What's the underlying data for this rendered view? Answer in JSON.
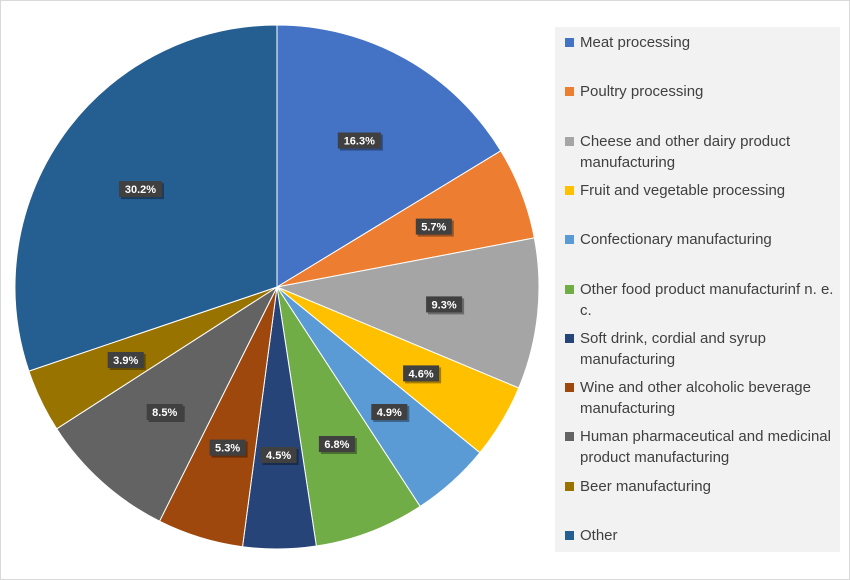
{
  "chart_data": {
    "type": "pie",
    "categories": [
      "Meat processing",
      "Poultry processing",
      "Cheese and other dairy product manufacturing",
      "Fruit and vegetable processing",
      "Confectionary manufacturing",
      "Other food product manufacturinf n. e. c.",
      "Soft drink, cordial and syrup manufacturing",
      "Wine and other alcoholic beverage manufacturing",
      "Human pharmaceutical and medicinal product manufacturing",
      "Beer manufacturing",
      "Other"
    ],
    "values": [
      16.3,
      5.7,
      9.3,
      4.6,
      4.9,
      6.8,
      4.5,
      5.3,
      8.5,
      3.9,
      30.2
    ],
    "data_labels": [
      "16.3%",
      "5.7%",
      "9.3%",
      "4.6%",
      "4.9%",
      "6.8%",
      "4.5%",
      "5.3%",
      "8.5%",
      "3.9%",
      "30.2%"
    ],
    "colors": [
      "#4472c4",
      "#ed7d31",
      "#a5a5a5",
      "#ffc000",
      "#5b9bd5",
      "#70ad47",
      "#264478",
      "#9e480e",
      "#636363",
      "#997300",
      "#255e91"
    ],
    "start_angle_deg": 0,
    "direction": "clockwise",
    "legend_position": "right",
    "title": ""
  }
}
